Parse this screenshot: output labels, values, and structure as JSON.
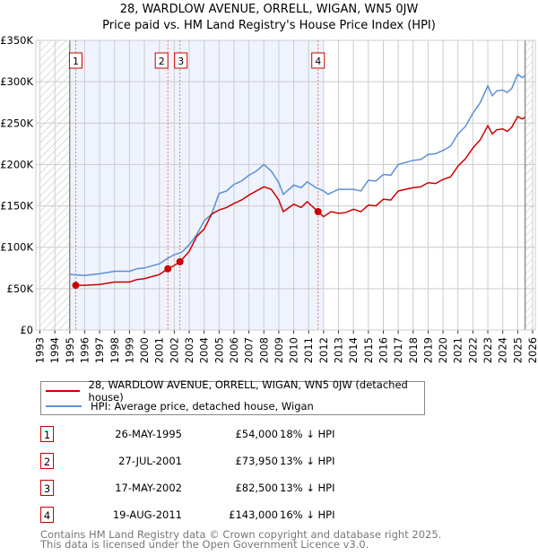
{
  "chart_data": {
    "type": "line",
    "title": "28, WARDLOW AVENUE, ORRELL, WIGAN, WN5 0JW",
    "subtitle": "Price paid vs. HM Land Registry's House Price Index (HPI)",
    "xlim": [
      1993,
      2026
    ],
    "ylim": [
      0,
      350000
    ],
    "x_ticks": [
      "1993",
      "1994",
      "1995",
      "1996",
      "1997",
      "1998",
      "1999",
      "2000",
      "2001",
      "2002",
      "2003",
      "2004",
      "2005",
      "2006",
      "2007",
      "2008",
      "2009",
      "2010",
      "2011",
      "2012",
      "2013",
      "2014",
      "2015",
      "2016",
      "2017",
      "2018",
      "2019",
      "2020",
      "2021",
      "2022",
      "2023",
      "2024",
      "2025",
      "2026"
    ],
    "y_ticks": [
      {
        "v": 0,
        "label": "£0"
      },
      {
        "v": 50000,
        "label": "£50K"
      },
      {
        "v": 100000,
        "label": "£100K"
      },
      {
        "v": 150000,
        "label": "£150K"
      },
      {
        "v": 200000,
        "label": "£200K"
      },
      {
        "v": 250000,
        "label": "£250K"
      },
      {
        "v": 300000,
        "label": "£300K"
      },
      {
        "v": 350000,
        "label": "£350K"
      }
    ],
    "grid": true,
    "series": [
      {
        "name": "28, WARDLOW AVENUE, ORRELL, WIGAN, WN5 0JW (detached house)",
        "color": "#cc0000",
        "points": [
          [
            1995.4,
            54000
          ],
          [
            1996,
            54000
          ],
          [
            1997,
            55000
          ],
          [
            1998,
            58000
          ],
          [
            1999,
            58000
          ],
          [
            1999.5,
            61000
          ],
          [
            2000,
            62000
          ],
          [
            2001,
            67000
          ],
          [
            2001.57,
            73950
          ],
          [
            2002,
            78000
          ],
          [
            2002.38,
            82500
          ],
          [
            2003,
            95000
          ],
          [
            2003.5,
            113000
          ],
          [
            2004,
            122000
          ],
          [
            2004.5,
            140000
          ],
          [
            2005,
            145000
          ],
          [
            2005.5,
            148000
          ],
          [
            2006,
            153000
          ],
          [
            2006.5,
            157000
          ],
          [
            2007,
            163000
          ],
          [
            2007.5,
            168000
          ],
          [
            2008,
            173000
          ],
          [
            2008.5,
            170000
          ],
          [
            2009,
            157000
          ],
          [
            2009.3,
            143000
          ],
          [
            2010,
            152000
          ],
          [
            2010.5,
            148000
          ],
          [
            2010.9,
            155000
          ],
          [
            2011.63,
            143000
          ],
          [
            2012,
            137000
          ],
          [
            2012.5,
            143000
          ],
          [
            2013,
            141000
          ],
          [
            2013.5,
            142000
          ],
          [
            2014,
            146000
          ],
          [
            2014.5,
            143000
          ],
          [
            2015,
            151000
          ],
          [
            2015.5,
            150000
          ],
          [
            2016,
            158000
          ],
          [
            2016.5,
            157000
          ],
          [
            2017,
            168000
          ],
          [
            2018,
            172000
          ],
          [
            2018.5,
            173000
          ],
          [
            2019,
            178000
          ],
          [
            2019.5,
            177000
          ],
          [
            2020,
            182000
          ],
          [
            2020.5,
            185000
          ],
          [
            2021,
            198000
          ],
          [
            2021.5,
            207000
          ],
          [
            2022,
            220000
          ],
          [
            2022.5,
            230000
          ],
          [
            2023,
            247000
          ],
          [
            2023.3,
            237000
          ],
          [
            2023.6,
            242000
          ],
          [
            2024,
            243000
          ],
          [
            2024.3,
            240000
          ],
          [
            2024.6,
            245000
          ],
          [
            2025,
            258000
          ],
          [
            2025.3,
            255000
          ],
          [
            2025.5,
            257000
          ]
        ]
      },
      {
        "name": "HPI: Average price, detached house, Wigan",
        "color": "#5b8fd6",
        "points": [
          [
            1995,
            67000
          ],
          [
            1996,
            66000
          ],
          [
            1997,
            68000
          ],
          [
            1998,
            71000
          ],
          [
            1999,
            71000
          ],
          [
            1999.5,
            74000
          ],
          [
            2000,
            75000
          ],
          [
            2001,
            80000
          ],
          [
            2001.5,
            86000
          ],
          [
            2002,
            91000
          ],
          [
            2002.5,
            94000
          ],
          [
            2003,
            103000
          ],
          [
            2003.5,
            115000
          ],
          [
            2004,
            132000
          ],
          [
            2004.5,
            140000
          ],
          [
            2005,
            165000
          ],
          [
            2005.5,
            168000
          ],
          [
            2006,
            176000
          ],
          [
            2006.5,
            180000
          ],
          [
            2007,
            187000
          ],
          [
            2007.5,
            192000
          ],
          [
            2008,
            200000
          ],
          [
            2008.5,
            192000
          ],
          [
            2009,
            178000
          ],
          [
            2009.3,
            164000
          ],
          [
            2010,
            175000
          ],
          [
            2010.5,
            172000
          ],
          [
            2010.9,
            179000
          ],
          [
            2011.5,
            172000
          ],
          [
            2012,
            168000
          ],
          [
            2012.3,
            164000
          ],
          [
            2013,
            170000
          ],
          [
            2014,
            170000
          ],
          [
            2014.5,
            168000
          ],
          [
            2015,
            181000
          ],
          [
            2015.5,
            180000
          ],
          [
            2016,
            188000
          ],
          [
            2016.5,
            187000
          ],
          [
            2017,
            200000
          ],
          [
            2018,
            205000
          ],
          [
            2018.5,
            206000
          ],
          [
            2019,
            212000
          ],
          [
            2019.5,
            213000
          ],
          [
            2020,
            217000
          ],
          [
            2020.5,
            222000
          ],
          [
            2021,
            237000
          ],
          [
            2021.5,
            246000
          ],
          [
            2022,
            262000
          ],
          [
            2022.5,
            275000
          ],
          [
            2023,
            295000
          ],
          [
            2023.3,
            283000
          ],
          [
            2023.6,
            289000
          ],
          [
            2024,
            290000
          ],
          [
            2024.3,
            287000
          ],
          [
            2024.6,
            292000
          ],
          [
            2025,
            309000
          ],
          [
            2025.3,
            305000
          ],
          [
            2025.5,
            307000
          ]
        ]
      }
    ],
    "sales": [
      {
        "id": "1",
        "x": 1995.4,
        "price": 54000,
        "date": "26-MAY-1995",
        "price_label": "£54,000",
        "hpi": "18% ↓ HPI"
      },
      {
        "id": "2",
        "x": 2001.57,
        "price": 73950,
        "date": "27-JUL-2001",
        "price_label": "£73,950",
        "hpi": "13% ↓ HPI"
      },
      {
        "id": "3",
        "x": 2002.38,
        "price": 82500,
        "date": "17-MAY-2002",
        "price_label": "£82,500",
        "hpi": "13% ↓ HPI"
      },
      {
        "id": "4",
        "x": 2011.63,
        "price": 143000,
        "date": "19-AUG-2011",
        "price_label": "£143,000",
        "hpi": "16% ↓ HPI"
      }
    ],
    "shaded_range": [
      1995,
      2012
    ],
    "hatched_ranges": [
      [
        1993,
        1995
      ],
      [
        2025.5,
        2026
      ]
    ]
  },
  "footer": {
    "line1": "Contains HM Land Registry data © Crown copyright and database right 2025.",
    "line2": "This data is licensed under the Open Government Licence v3.0."
  }
}
